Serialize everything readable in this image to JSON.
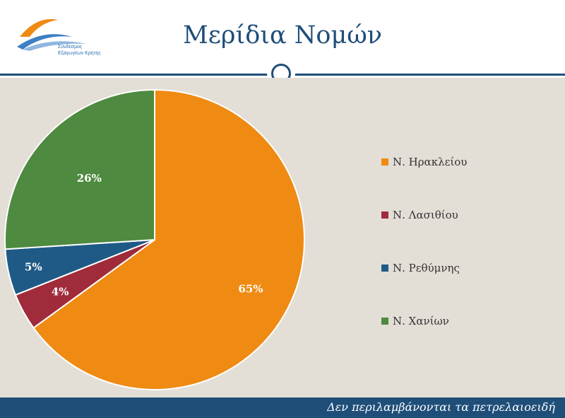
{
  "header": {
    "title": "Μερίδια Νομών",
    "logo_text": "Σύνδεσμος\nΕξαγωγέων Κρήτης"
  },
  "colors": {
    "heraklion": "#ef8a12",
    "lasithi": "#a02b3a",
    "rethymno": "#1f5a86",
    "chania": "#4e8a3f",
    "accent": "#1f4e79",
    "background": "#e3ded6"
  },
  "chart_data": {
    "type": "pie",
    "categories": [
      "Ν. Ηρακλείου",
      "Ν. Λασιθίου",
      "Ν. Ρεθύμνης",
      "Ν. Χανίων"
    ],
    "values": [
      65,
      4,
      5,
      26
    ],
    "labels": [
      "65%",
      "4%",
      "5%",
      "26%"
    ],
    "colors": [
      "#ef8a12",
      "#a02b3a",
      "#1f5a86",
      "#4e8a3f"
    ],
    "legend": "right"
  },
  "footer": {
    "note": "Δεν περιλαμβάνονται τα πετρελαιοειδή"
  }
}
